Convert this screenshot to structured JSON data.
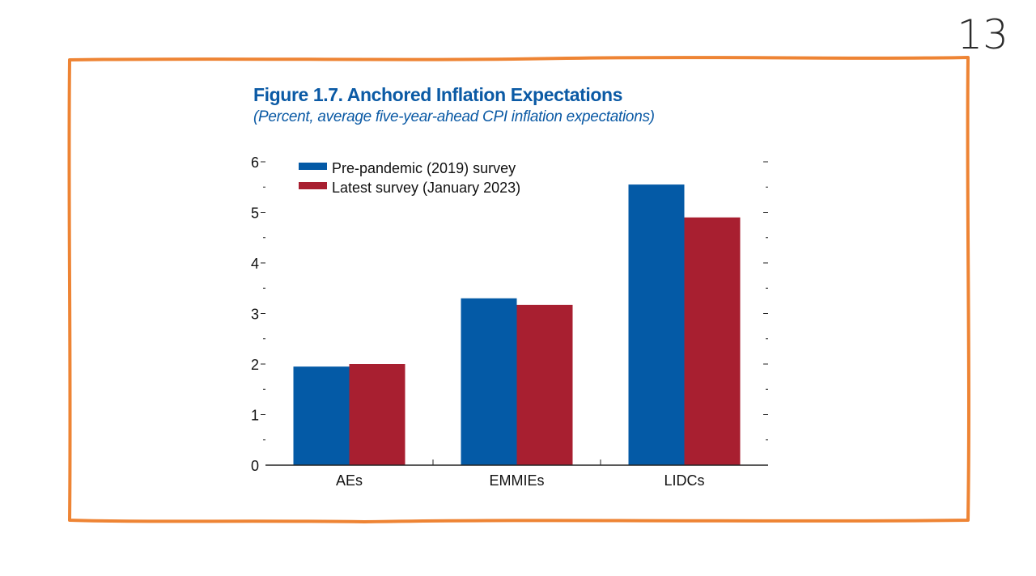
{
  "slide": {
    "page_number": "13"
  },
  "colors": {
    "frame": "#ee8434",
    "title": "#0b5aa5",
    "series_pre": "#045aa6",
    "series_latest": "#a81f30",
    "axis": "#222222"
  },
  "chart_data": {
    "type": "bar",
    "title": "Figure 1.7. Anchored Inflation Expectations",
    "subtitle": "(Percent, average five-year-ahead CPI inflation expectations)",
    "categories": [
      "AEs",
      "EMMIEs",
      "LIDCs"
    ],
    "series": [
      {
        "name": "Pre-pandemic (2019) survey",
        "color": "#045aa6",
        "values": [
          1.95,
          3.3,
          5.55
        ]
      },
      {
        "name": "Latest survey (January 2023)",
        "color": "#a81f30",
        "values": [
          2.0,
          3.17,
          4.9
        ]
      }
    ],
    "ylim": [
      0,
      6
    ],
    "yticks": [
      "0",
      "1",
      "2",
      "3",
      "4",
      "5",
      "6"
    ],
    "xlabel": "",
    "ylabel": "",
    "legend": "top-left"
  }
}
